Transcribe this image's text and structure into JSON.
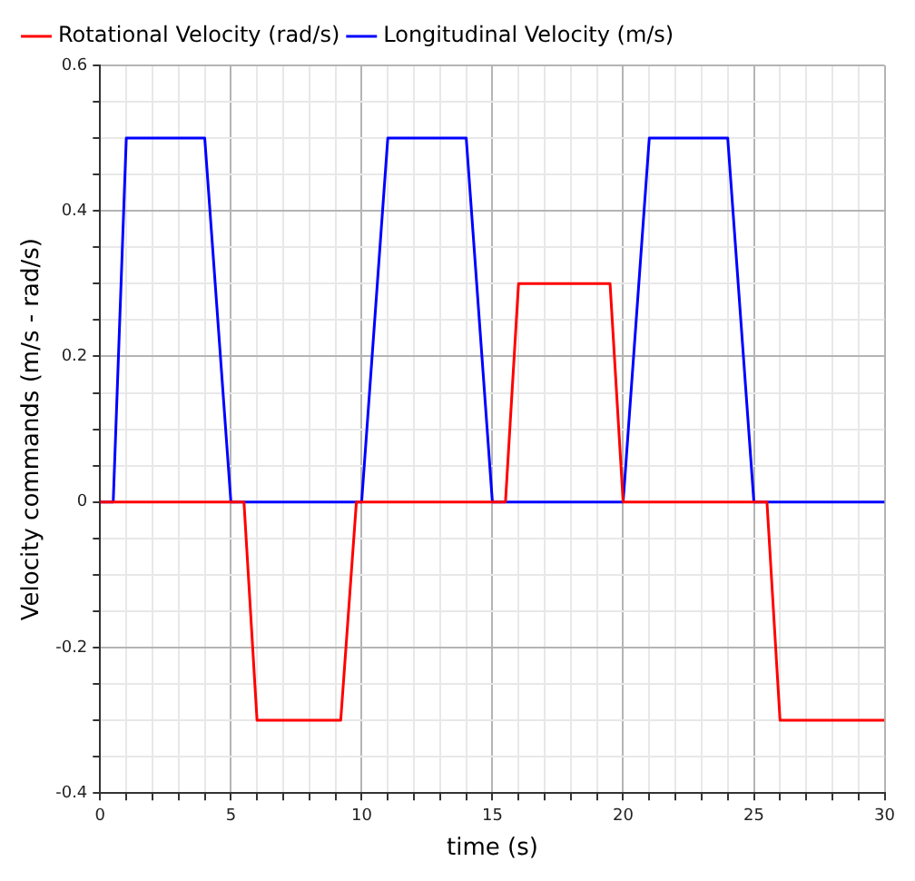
{
  "chart_data": {
    "type": "line",
    "xlabel": "time (s)",
    "ylabel": "Velocity commands (m/s - rad/s)",
    "series": [
      {
        "name": "Rotational Velocity (rad/s)",
        "color": "#ff0000",
        "x": [
          0,
          5.5,
          6,
          9.2,
          9.8,
          15.5,
          16,
          19.5,
          20,
          25.5,
          26,
          30
        ],
        "values": [
          0,
          0,
          -0.3,
          -0.3,
          0,
          0,
          0.3,
          0.3,
          0,
          0,
          -0.3,
          -0.3
        ]
      },
      {
        "name": "Longitudinal Velocity (m/s)",
        "color": "#0000ff",
        "x": [
          0,
          0.5,
          1,
          4,
          5,
          10,
          11,
          14,
          15,
          20,
          21,
          24,
          25,
          30
        ],
        "values": [
          0,
          0,
          0.5,
          0.5,
          0,
          0,
          0.5,
          0.5,
          0,
          0,
          0.5,
          0.5,
          0,
          0
        ]
      }
    ],
    "xlim": [
      0,
      30
    ],
    "xticks": [
      0,
      {
        "value": 1,
        "label": null
      },
      {
        "value": 2,
        "label": null
      },
      {
        "value": 3,
        "label": null
      },
      {
        "value": 4,
        "label": null
      },
      5,
      {
        "value": 6,
        "label": null
      },
      {
        "value": 7,
        "label": null
      },
      {
        "value": 8,
        "label": null
      },
      {
        "value": 9,
        "label": null
      },
      10,
      {
        "value": 11,
        "label": null
      },
      {
        "value": 12,
        "label": null
      },
      {
        "value": 13,
        "label": null
      },
      {
        "value": 14,
        "label": null
      },
      15,
      {
        "value": 16,
        "label": null
      },
      {
        "value": 17,
        "label": null
      },
      {
        "value": 18,
        "label": null
      },
      {
        "value": 19,
        "label": null
      },
      20,
      {
        "value": 21,
        "label": null
      },
      {
        "value": 22,
        "label": null
      },
      {
        "value": 23,
        "label": null
      },
      {
        "value": 24,
        "label": null
      },
      25,
      {
        "value": 26,
        "label": null
      },
      {
        "value": 27,
        "label": null
      },
      {
        "value": 28,
        "label": null
      },
      {
        "value": 29,
        "label": null
      },
      30
    ],
    "ylim": [
      -0.4,
      0.6
    ],
    "yticks": [
      -0.4,
      {
        "value": -0.35,
        "label": null
      },
      {
        "value": -0.3,
        "label": null
      },
      {
        "value": -0.25,
        "label": null
      },
      -0.2,
      {
        "value": -0.15,
        "label": null
      },
      {
        "value": -0.1,
        "label": null
      },
      {
        "value": -0.05,
        "label": null
      },
      0,
      {
        "value": 0.05,
        "label": null
      },
      {
        "value": 0.1,
        "label": null
      },
      {
        "value": 0.15,
        "label": null
      },
      0.2,
      {
        "value": 0.25,
        "label": null
      },
      {
        "value": 0.3,
        "label": null
      },
      {
        "value": 0.35,
        "label": null
      },
      0.4,
      {
        "value": 0.45,
        "label": null
      },
      {
        "value": 0.5,
        "label": null
      },
      {
        "value": 0.55,
        "label": null
      },
      0.6
    ],
    "grid": true,
    "legend": "top",
    "marker": "none",
    "line_style": "solid"
  }
}
